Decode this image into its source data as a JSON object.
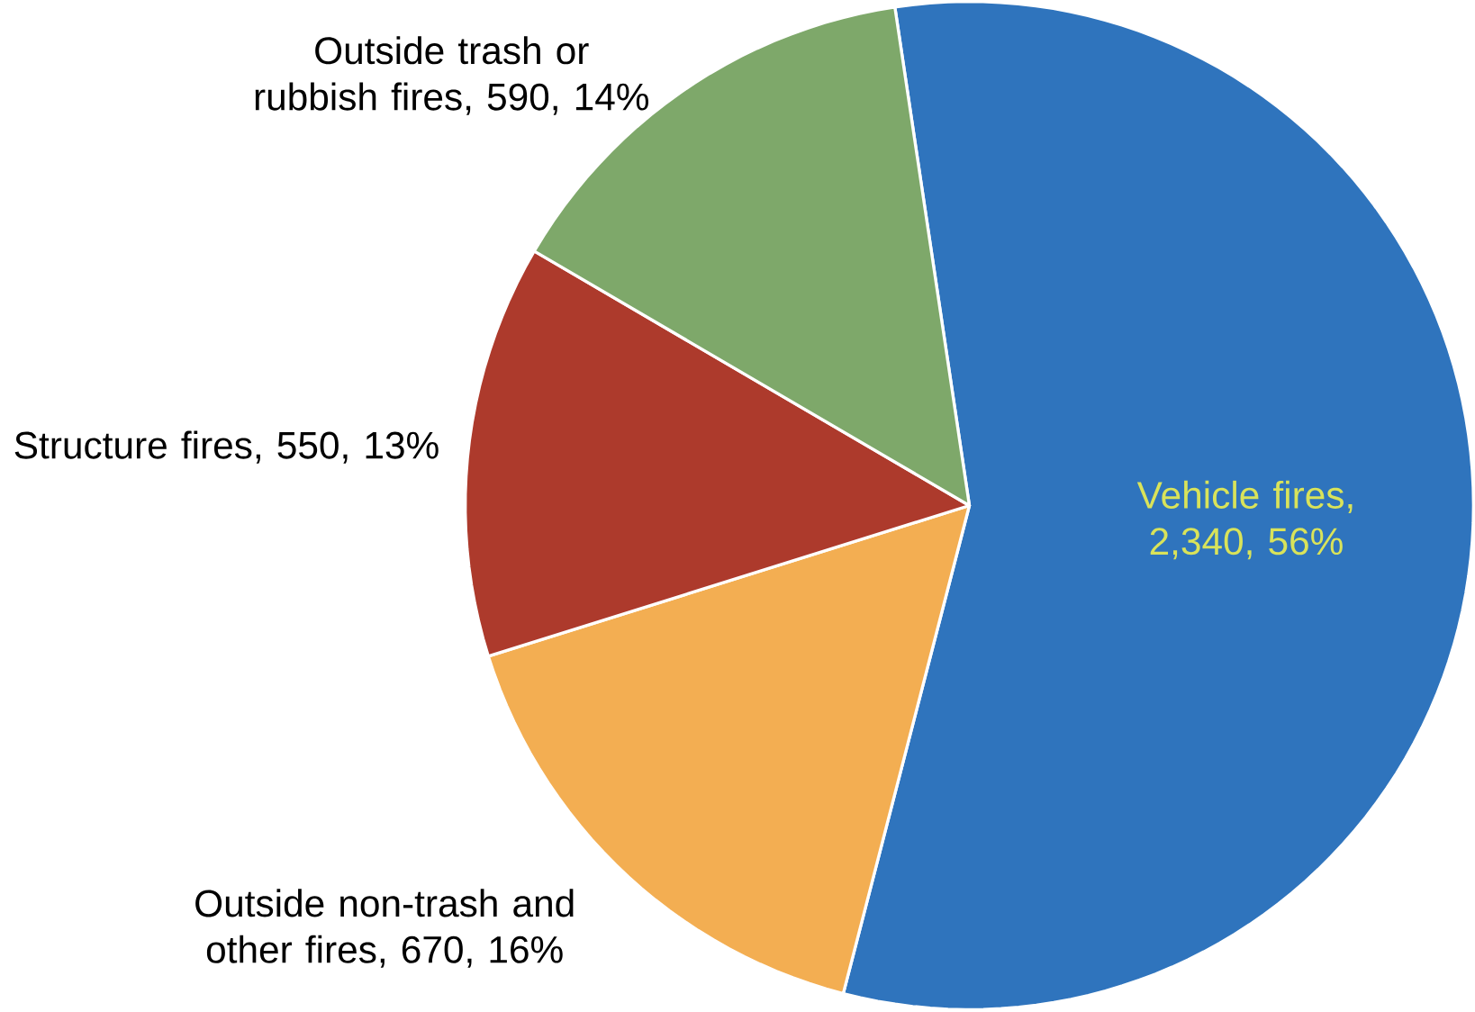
{
  "chart_data": {
    "type": "pie",
    "categories": [
      "Vehicle fires, 2,340, 56%",
      "Outside non-trash and other fires, 670, 16%",
      "Structure fires, 550, 13%",
      "Outside trash or rubbish fires, 590, 14%"
    ],
    "values": [
      2340,
      670,
      550,
      590
    ],
    "colors": [
      "#2f74bd",
      "#f3ae52",
      "#ad3a2c",
      "#7ea86a"
    ]
  }
}
